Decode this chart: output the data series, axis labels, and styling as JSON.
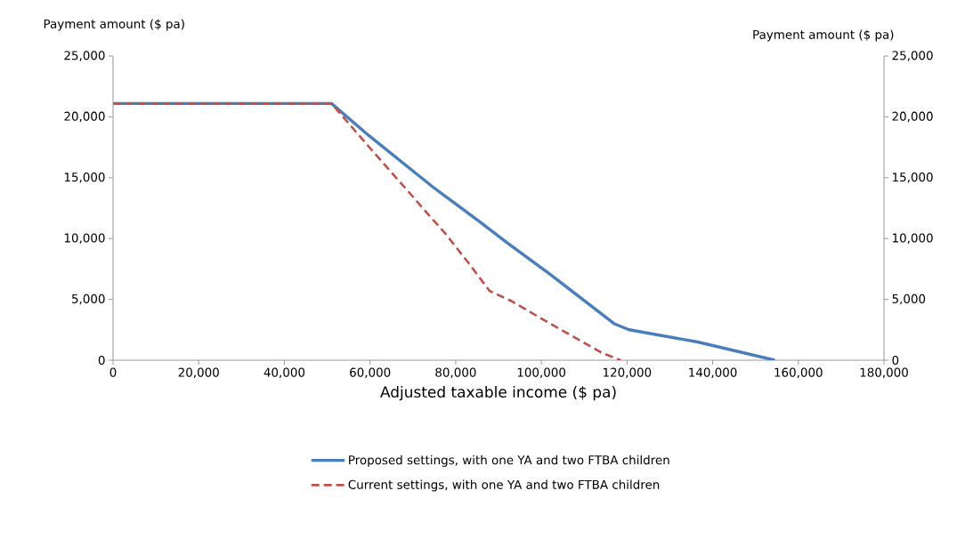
{
  "chart_data": {
    "type": "line",
    "xlabel": "Adjusted taxable income ($ pa)",
    "annotations": [
      "Payment amount ($ pa)",
      "Payment amount ($ pa)"
    ],
    "xlim": [
      0,
      180000
    ],
    "xticks": [
      0,
      {
        "value": 20000,
        "label": "20,000"
      },
      {
        "value": 40000,
        "label": "40,000"
      },
      {
        "value": 60000,
        "label": "60,000"
      },
      {
        "value": 80000,
        "label": "80,000"
      },
      {
        "value": 100000,
        "label": "100,000"
      },
      {
        "value": 120000,
        "label": "120,000"
      },
      {
        "value": 140000,
        "label": "140,000"
      },
      {
        "value": 160000,
        "label": "160,000"
      },
      {
        "value": 180000,
        "label": "180,000"
      }
    ],
    "ylim": [
      0,
      25000
    ],
    "yticks": [
      0,
      {
        "value": 5000,
        "label": "5,000"
      },
      {
        "value": 10000,
        "label": "10,000"
      },
      {
        "value": 15000,
        "label": "15,000"
      },
      {
        "value": 20000,
        "label": "20,000"
      },
      {
        "value": 25000,
        "label": "25,000"
      }
    ],
    "y2lim": [
      0,
      25000
    ],
    "y2ticks": [
      0,
      {
        "value": 5000,
        "label": "5,000"
      },
      {
        "value": 10000,
        "label": "10,000"
      },
      {
        "value": 15000,
        "label": "15,000"
      },
      {
        "value": 20000,
        "label": "20,000"
      },
      {
        "value": 25000,
        "label": "25,000"
      }
    ],
    "grid": false,
    "legend": "bottom",
    "marker": "none",
    "series": [
      {
        "name": "Proposed settings, with one YA and two FTBA children",
        "color": "#4a7ebb",
        "line_style": "solid",
        "x": [
          0,
          51000,
          59600,
          74800,
          85900,
          92200,
          101900,
          117000,
          120500,
          136500,
          154500
        ],
        "values": [
          21100,
          21100,
          18500,
          14200,
          11300,
          9600,
          7100,
          3000,
          2500,
          1500,
          0
        ]
      },
      {
        "name": "Current settings, with one YA and two FTBA children",
        "color": "#c0504d",
        "line_style": "dashed",
        "x": [
          0,
          51000,
          59600,
          68600,
          74800,
          77600,
          83200,
          87900,
          92800,
          101100,
          114200,
          118500
        ],
        "values": [
          21100,
          21100,
          17600,
          14000,
          11500,
          10400,
          7900,
          5700,
          4900,
          3200,
          600,
          0
        ]
      }
    ]
  }
}
